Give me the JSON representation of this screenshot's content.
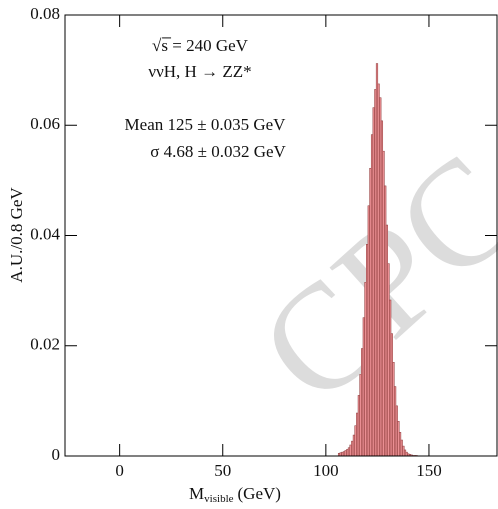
{
  "chart_data": {
    "type": "histogram",
    "x_label": "M",
    "x_label_sub": "visible",
    "x_label_unit": "(GeV)",
    "y_label": "A.U./0.8 GeV",
    "annotations": [
      "√s = 240 GeV",
      "ννH, H → ZZ*",
      "Mean 125 ± 0.035 GeV",
      "σ 4.68 ± 0.032 GeV"
    ],
    "watermark": "CPC",
    "color": "#eb8f93",
    "edge_color": "#8b3a3a",
    "xlim": [
      -26.5,
      183
    ],
    "ylim": [
      0,
      0.08
    ],
    "xticks": [
      0,
      50,
      100,
      150
    ],
    "yticks": [
      0,
      0.02,
      0.04,
      0.06,
      0.08
    ],
    "bins": [
      106,
      106.8,
      107.6,
      108.4,
      109.2,
      110,
      110.8,
      111.6,
      112.4,
      113.2,
      114,
      114.8,
      115.6,
      116.4,
      117.2,
      118,
      118.8,
      119.6,
      120.4,
      121.2,
      122,
      122.8,
      123.6,
      124.4,
      125.2,
      126,
      126.8,
      127.6,
      128.4,
      129.2,
      130,
      130.8,
      131.6,
      132.4,
      133.2,
      134,
      134.8,
      135.6,
      136.4,
      137.2,
      138,
      138.8,
      139.6,
      140.4,
      141.2,
      142,
      142.8,
      143.6,
      144.4
    ],
    "values": [
      0.0005,
      0.0006,
      0.0007,
      0.0008,
      0.001,
      0.0012,
      0.0015,
      0.002,
      0.0027,
      0.0038,
      0.0055,
      0.0078,
      0.011,
      0.0148,
      0.0195,
      0.0251,
      0.0315,
      0.0384,
      0.0454,
      0.0522,
      0.0583,
      0.0632,
      0.0665,
      0.0712,
      0.0675,
      0.065,
      0.0608,
      0.0553,
      0.049,
      0.0419,
      0.0349,
      0.0283,
      0.0222,
      0.017,
      0.0126,
      0.0091,
      0.0063,
      0.0043,
      0.0029,
      0.0018,
      0.0011,
      0.0007,
      0.0004,
      0.0003,
      0.0002,
      0.0001,
      0.0001,
      0.0001
    ]
  }
}
